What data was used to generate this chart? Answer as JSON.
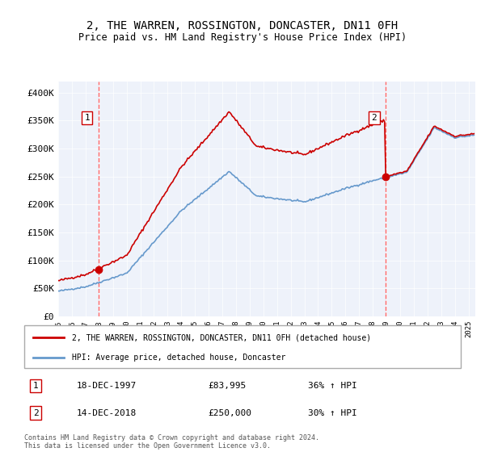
{
  "title": "2, THE WARREN, ROSSINGTON, DONCASTER, DN11 0FH",
  "subtitle": "Price paid vs. HM Land Registry's House Price Index (HPI)",
  "ylim": [
    0,
    420000
  ],
  "yticks": [
    0,
    50000,
    100000,
    150000,
    200000,
    250000,
    300000,
    350000,
    400000
  ],
  "ytick_labels": [
    "£0",
    "£50K",
    "£100K",
    "£150K",
    "£200K",
    "£250K",
    "£300K",
    "£350K",
    "£400K"
  ],
  "bg_color": "#eef2fa",
  "grid_color": "#ffffff",
  "sale1_price": 83995,
  "sale1_x": 1997.96,
  "sale2_price": 250000,
  "sale2_x": 2018.95,
  "hpi_line_color": "#6699cc",
  "price_line_color": "#cc0000",
  "dashed_line_color": "#ff6666",
  "legend_line1": "2, THE WARREN, ROSSINGTON, DONCASTER, DN11 0FH (detached house)",
  "legend_line2": "HPI: Average price, detached house, Doncaster",
  "annotation1_date": "18-DEC-1997",
  "annotation1_price": "£83,995",
  "annotation1_hpi": "36% ↑ HPI",
  "annotation2_date": "14-DEC-2018",
  "annotation2_price": "£250,000",
  "annotation2_hpi": "30% ↑ HPI",
  "footer": "Contains HM Land Registry data © Crown copyright and database right 2024.\nThis data is licensed under the Open Government Licence v3.0.",
  "xmin": 1995,
  "xmax": 2025.5
}
